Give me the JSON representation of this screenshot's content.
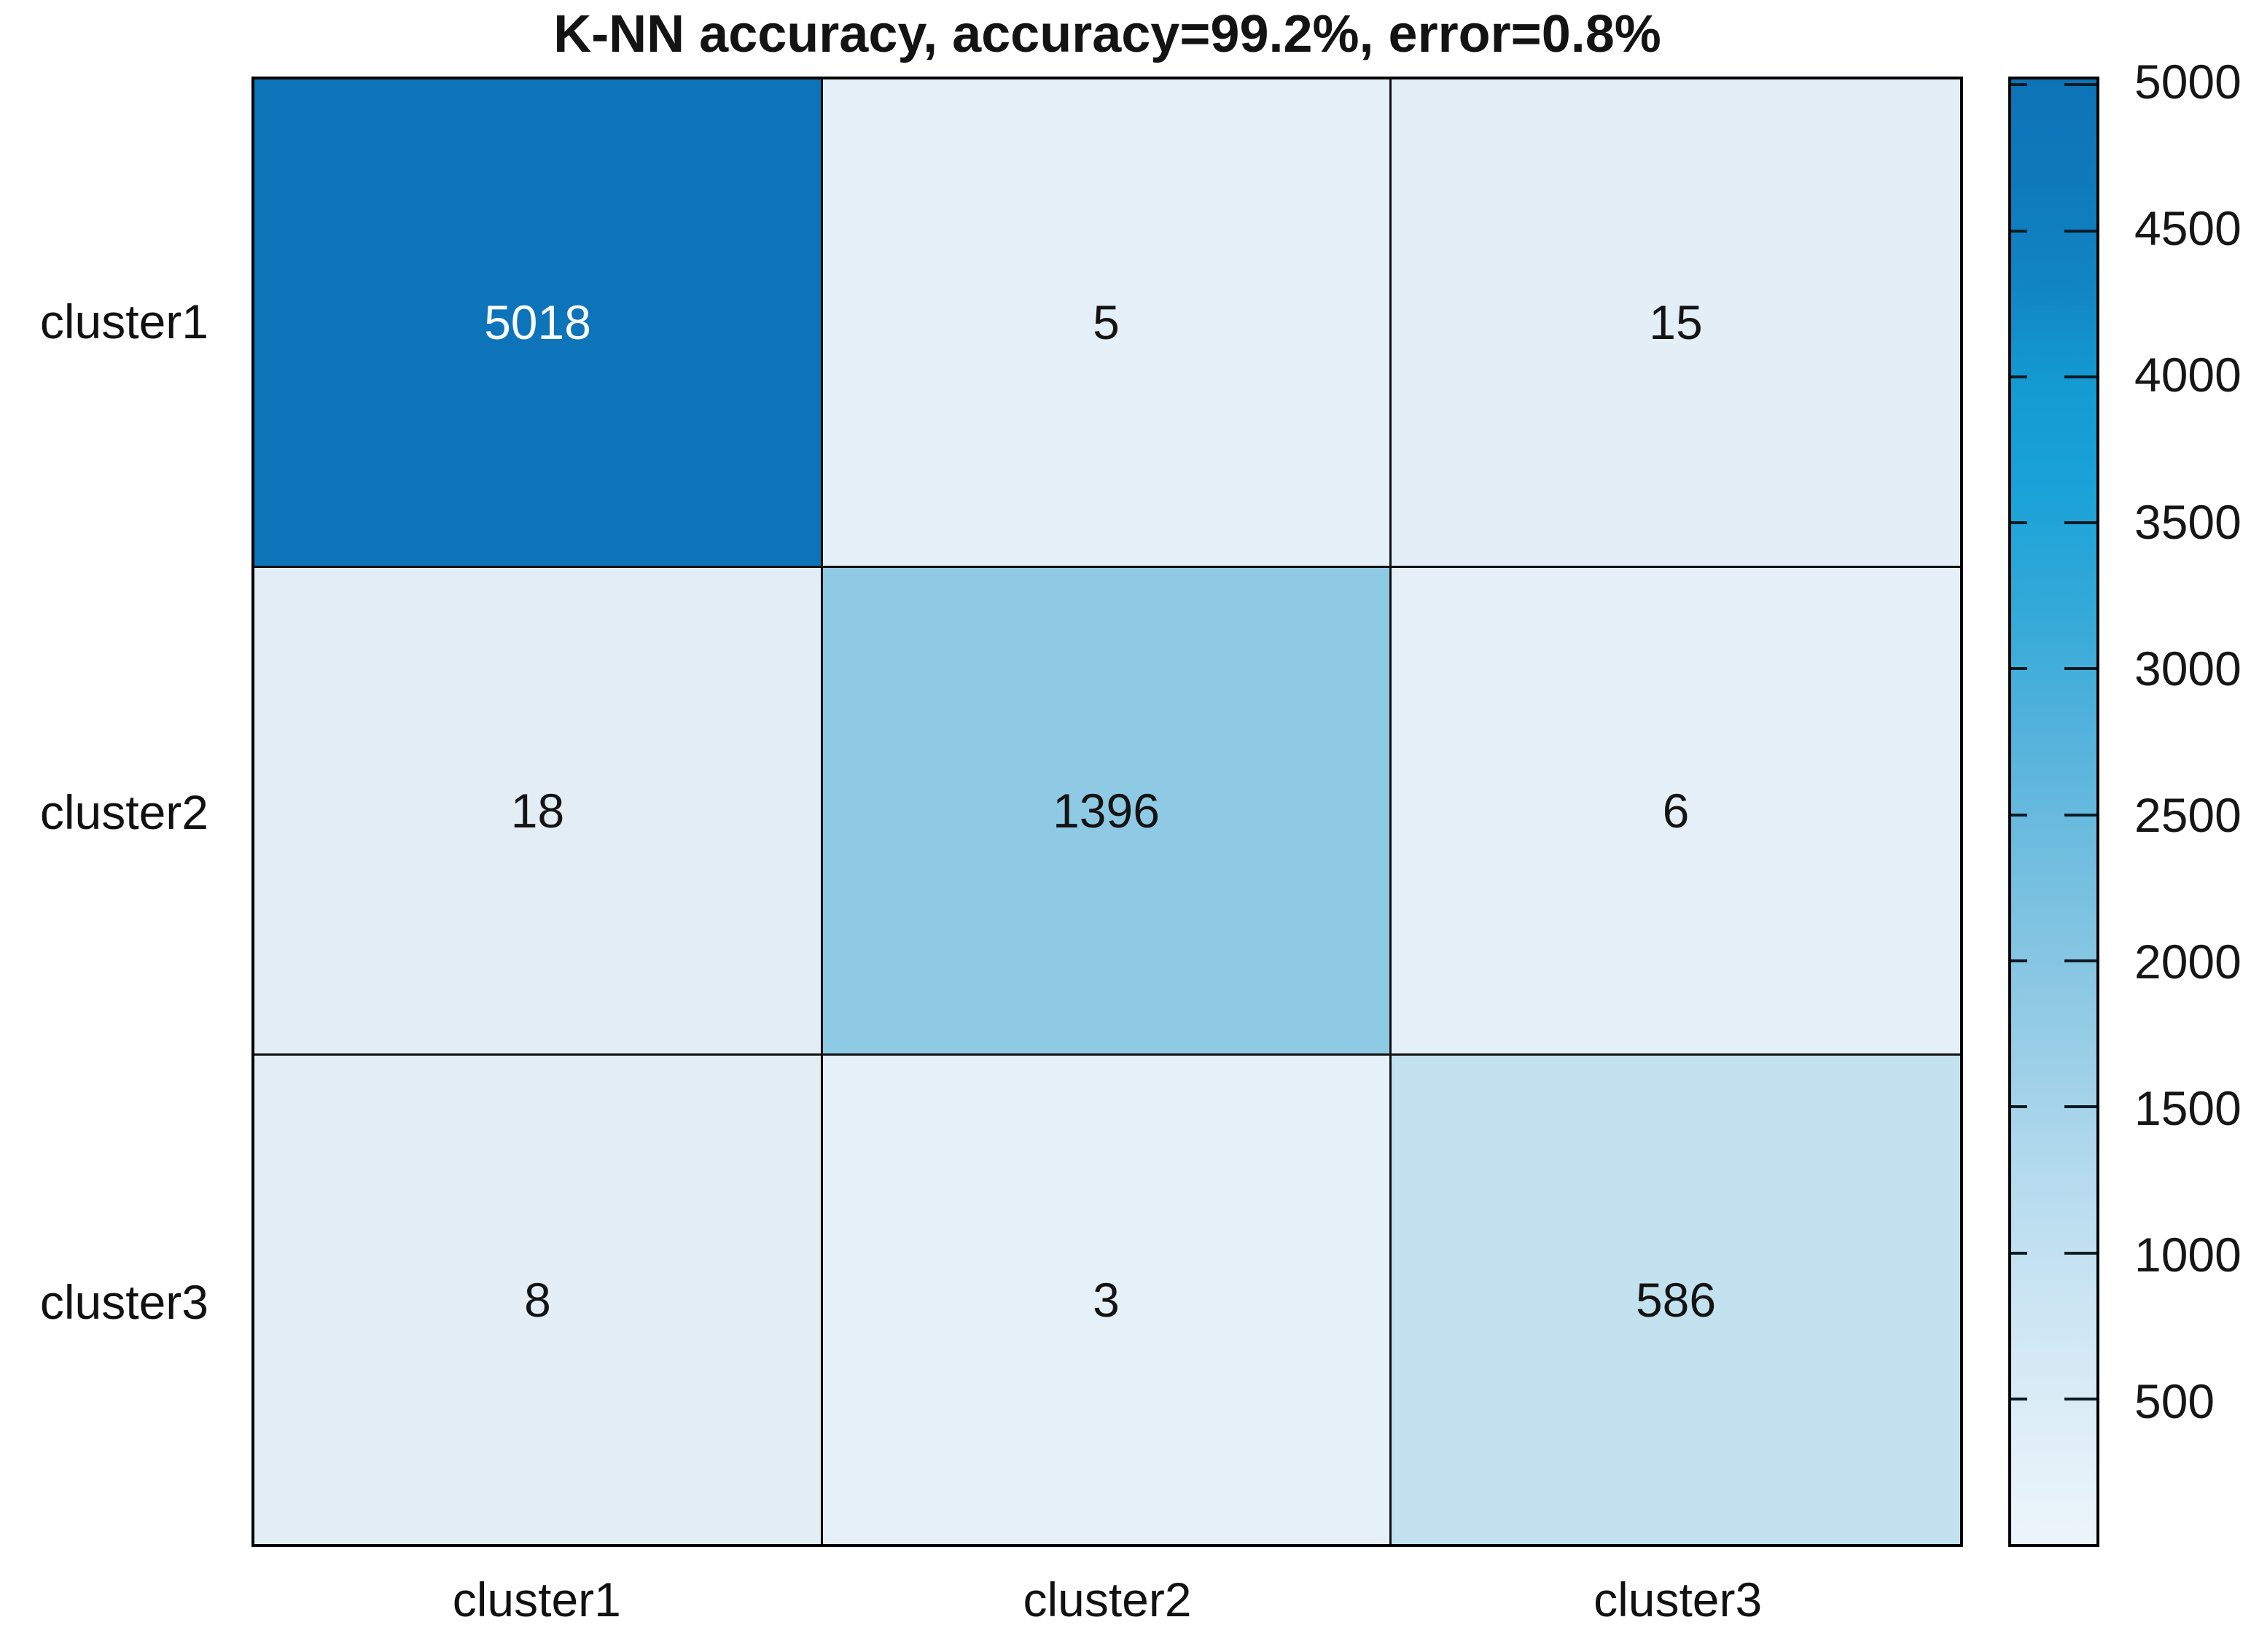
{
  "figure": {
    "background": "#ffffff",
    "text_color": "#111111",
    "border_color": "#000000"
  },
  "chart_data": {
    "type": "heatmap",
    "title": "K-NN accuracy, accuracy=99.2%, error=0.8%",
    "x_categories": [
      "cluster1",
      "cluster2",
      "cluster3"
    ],
    "y_categories": [
      "cluster1",
      "cluster2",
      "cluster3"
    ],
    "values": [
      [
        5018,
        5,
        15
      ],
      [
        18,
        1396,
        6
      ],
      [
        8,
        3,
        586
      ]
    ],
    "cell_colors": [
      [
        "#0d74b9",
        "#e5eff8",
        "#e3eef7"
      ],
      [
        "#e3edf6",
        "#8fcae4",
        "#e4eff7"
      ],
      [
        "#e4eef7",
        "#e6f0f8",
        "#c3e2f0"
      ]
    ],
    "cell_text_colors": [
      [
        "#fafdff",
        "#141414",
        "#141414"
      ],
      [
        "#141414",
        "#141414",
        "#141414"
      ],
      [
        "#141414",
        "#141414",
        "#141414"
      ]
    ],
    "grid": "on",
    "legend": "none",
    "colorbar_position": "right",
    "colorbar": {
      "min": 3,
      "max": 5018,
      "tick_values": [
        5000,
        4500,
        4000,
        3500,
        3000,
        2500,
        2000,
        1500,
        1000,
        500
      ],
      "tick_labels": [
        "5000",
        "4500",
        "4000",
        "3500",
        "3000",
        "2500",
        "2000",
        "1500",
        "1000",
        "500"
      ],
      "gradient_stops": [
        {
          "pos": 0,
          "color": "#0d73b7"
        },
        {
          "pos": 7,
          "color": "#0e7abc"
        },
        {
          "pos": 14,
          "color": "#1185c4"
        },
        {
          "pos": 21,
          "color": "#149bd2"
        },
        {
          "pos": 28,
          "color": "#1aa3d8"
        },
        {
          "pos": 36,
          "color": "#32a9d8"
        },
        {
          "pos": 45,
          "color": "#55b3dc"
        },
        {
          "pos": 55,
          "color": "#77c0e0"
        },
        {
          "pos": 65,
          "color": "#95cce6"
        },
        {
          "pos": 75,
          "color": "#b5dbee"
        },
        {
          "pos": 85,
          "color": "#cfe7f4"
        },
        {
          "pos": 93,
          "color": "#e0eff8"
        },
        {
          "pos": 100,
          "color": "#ecf5fb"
        }
      ]
    }
  }
}
